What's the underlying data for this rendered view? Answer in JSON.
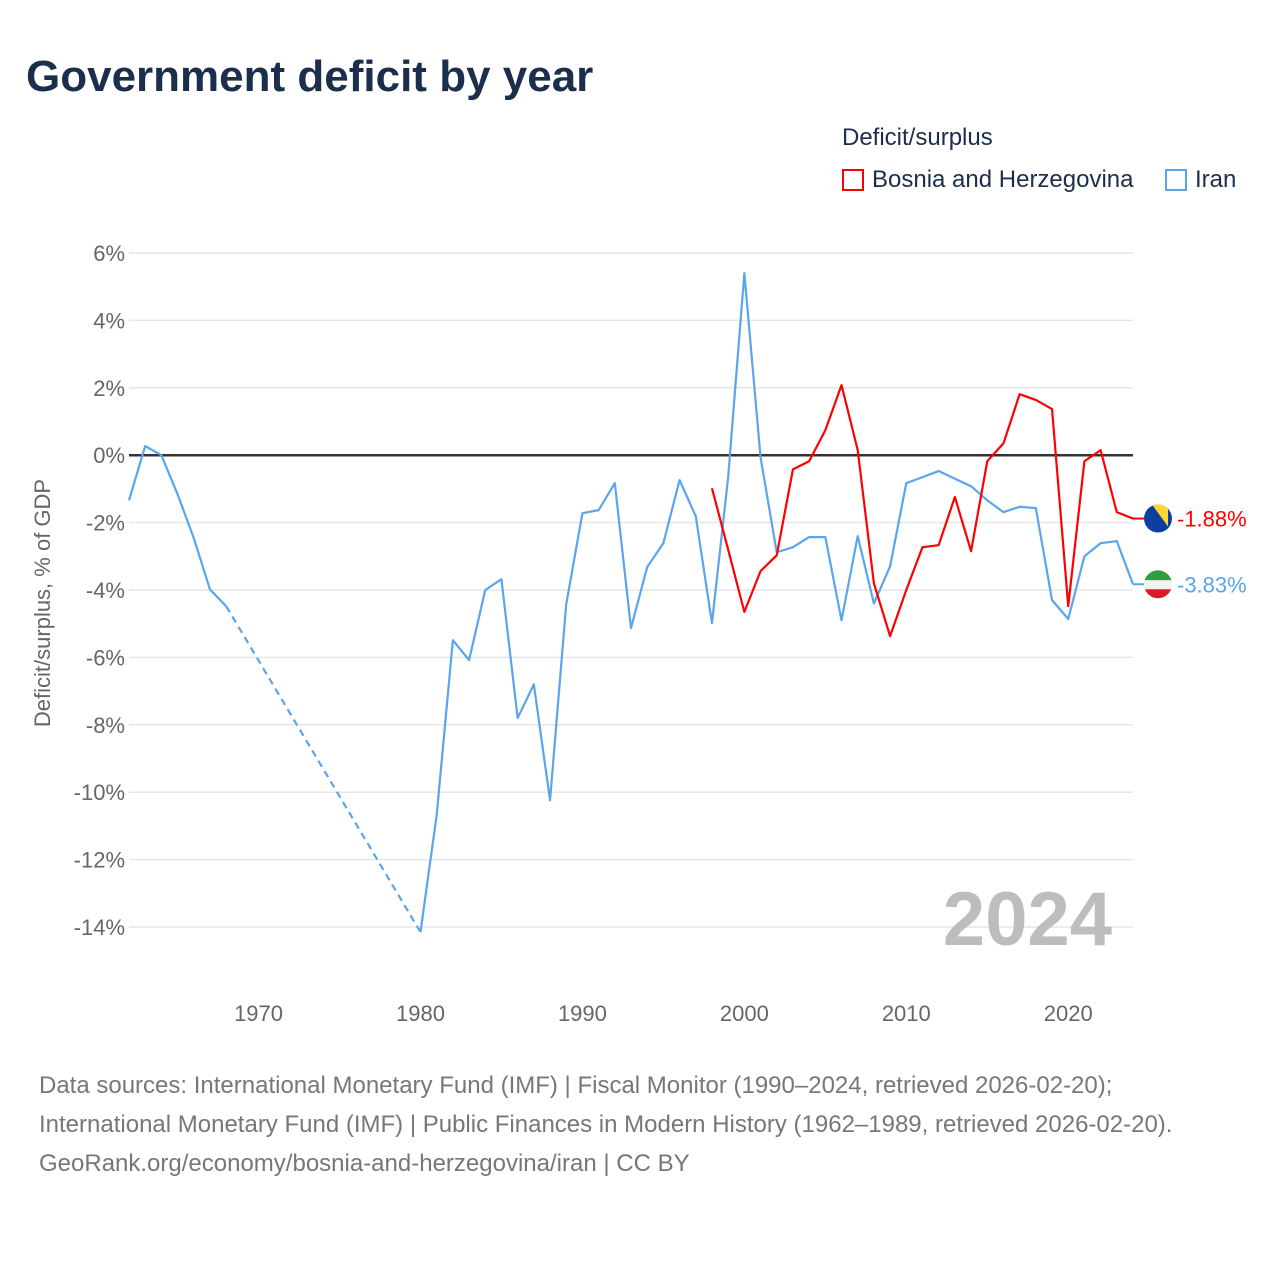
{
  "title": "Government deficit by year",
  "legend": {
    "title": "Deficit/surplus",
    "items": [
      {
        "name": "Bosnia and Herzegovina",
        "color": "#ff0000"
      },
      {
        "name": "Iran",
        "color": "#5aa5ec"
      }
    ]
  },
  "year_watermark": "2024",
  "footer": {
    "sources": "Data sources: International Monetary Fund (IMF) | Fiscal Monitor (1990–2024, retrieved 2026-02-20); International Monetary Fund (IMF) | Public Finances in Modern History (1962–1989, retrieved 2026-02-20).",
    "credit": "GeoRank.org/economy/bosnia-and-herzegovina/iran | CC BY"
  },
  "chart_data": {
    "type": "line",
    "title": "Government deficit by year",
    "xlabel": "",
    "ylabel": "Deficit/surplus, % of GDP",
    "xlim": [
      1962,
      2024
    ],
    "ylim": [
      -14,
      6
    ],
    "xticks": [
      1970,
      1980,
      1990,
      2000,
      2010,
      2020
    ],
    "yticks": [
      6,
      4,
      2,
      0,
      -2,
      -4,
      -6,
      -8,
      -10,
      -12,
      -14
    ],
    "ytick_labels": [
      "6%",
      "4%",
      "2%",
      "0%",
      "-2%",
      "-4%",
      "-6%",
      "-8%",
      "-10%",
      "-12%",
      "-14%"
    ],
    "grid": true,
    "legend_position": "top-right",
    "series": [
      {
        "name": "Bosnia and Herzegovina",
        "color": "#ff0000",
        "end_label": "-1.88%",
        "x": [
          1998,
          1999,
          2000,
          2001,
          2002,
          2003,
          2004,
          2005,
          2006,
          2007,
          2008,
          2009,
          2010,
          2011,
          2012,
          2013,
          2014,
          2015,
          2016,
          2017,
          2018,
          2019,
          2020,
          2021,
          2022,
          2023,
          2024
        ],
        "y": [
          -0.98,
          -2.8,
          -4.65,
          -3.44,
          -2.97,
          -0.42,
          -0.18,
          0.74,
          2.08,
          0.15,
          -3.8,
          -5.37,
          -4.0,
          -2.73,
          -2.67,
          -1.24,
          -2.85,
          -0.18,
          0.35,
          1.81,
          1.64,
          1.37,
          -4.48,
          -0.18,
          0.15,
          -1.69,
          -1.88
        ]
      },
      {
        "name": "Iran",
        "color": "#5aa5ec",
        "end_label": "-3.83%",
        "gap": [
          1968,
          1980
        ],
        "x": [
          1962,
          1963,
          1964,
          1965,
          1966,
          1967,
          1968,
          1980,
          1981,
          1982,
          1983,
          1984,
          1985,
          1986,
          1987,
          1988,
          1989,
          1990,
          1991,
          1992,
          1993,
          1994,
          1995,
          1996,
          1997,
          1998,
          1999,
          2000,
          2001,
          2002,
          2003,
          2004,
          2005,
          2006,
          2007,
          2008,
          2009,
          2010,
          2011,
          2012,
          2013,
          2014,
          2015,
          2016,
          2017,
          2018,
          2019,
          2020,
          2021,
          2022,
          2023,
          2024
        ],
        "y": [
          -1.34,
          0.27,
          0.0,
          -1.16,
          -2.46,
          -3.98,
          -4.48,
          -14.15,
          -10.68,
          -5.49,
          -6.08,
          -4.0,
          -3.68,
          -7.8,
          -6.8,
          -10.24,
          -4.42,
          -1.72,
          -1.63,
          -0.83,
          -5.13,
          -3.32,
          -2.61,
          -0.74,
          -1.81,
          -4.98,
          -0.65,
          5.4,
          -0.06,
          -2.88,
          -2.73,
          -2.43,
          -2.43,
          -4.9,
          -2.4,
          -4.4,
          -3.3,
          -0.83,
          -0.65,
          -0.47,
          -0.7,
          -0.92,
          -1.34,
          -1.69,
          -1.53,
          -1.57,
          -4.3,
          -4.86,
          -3.0,
          -2.61,
          -2.55,
          -3.83
        ]
      }
    ]
  }
}
